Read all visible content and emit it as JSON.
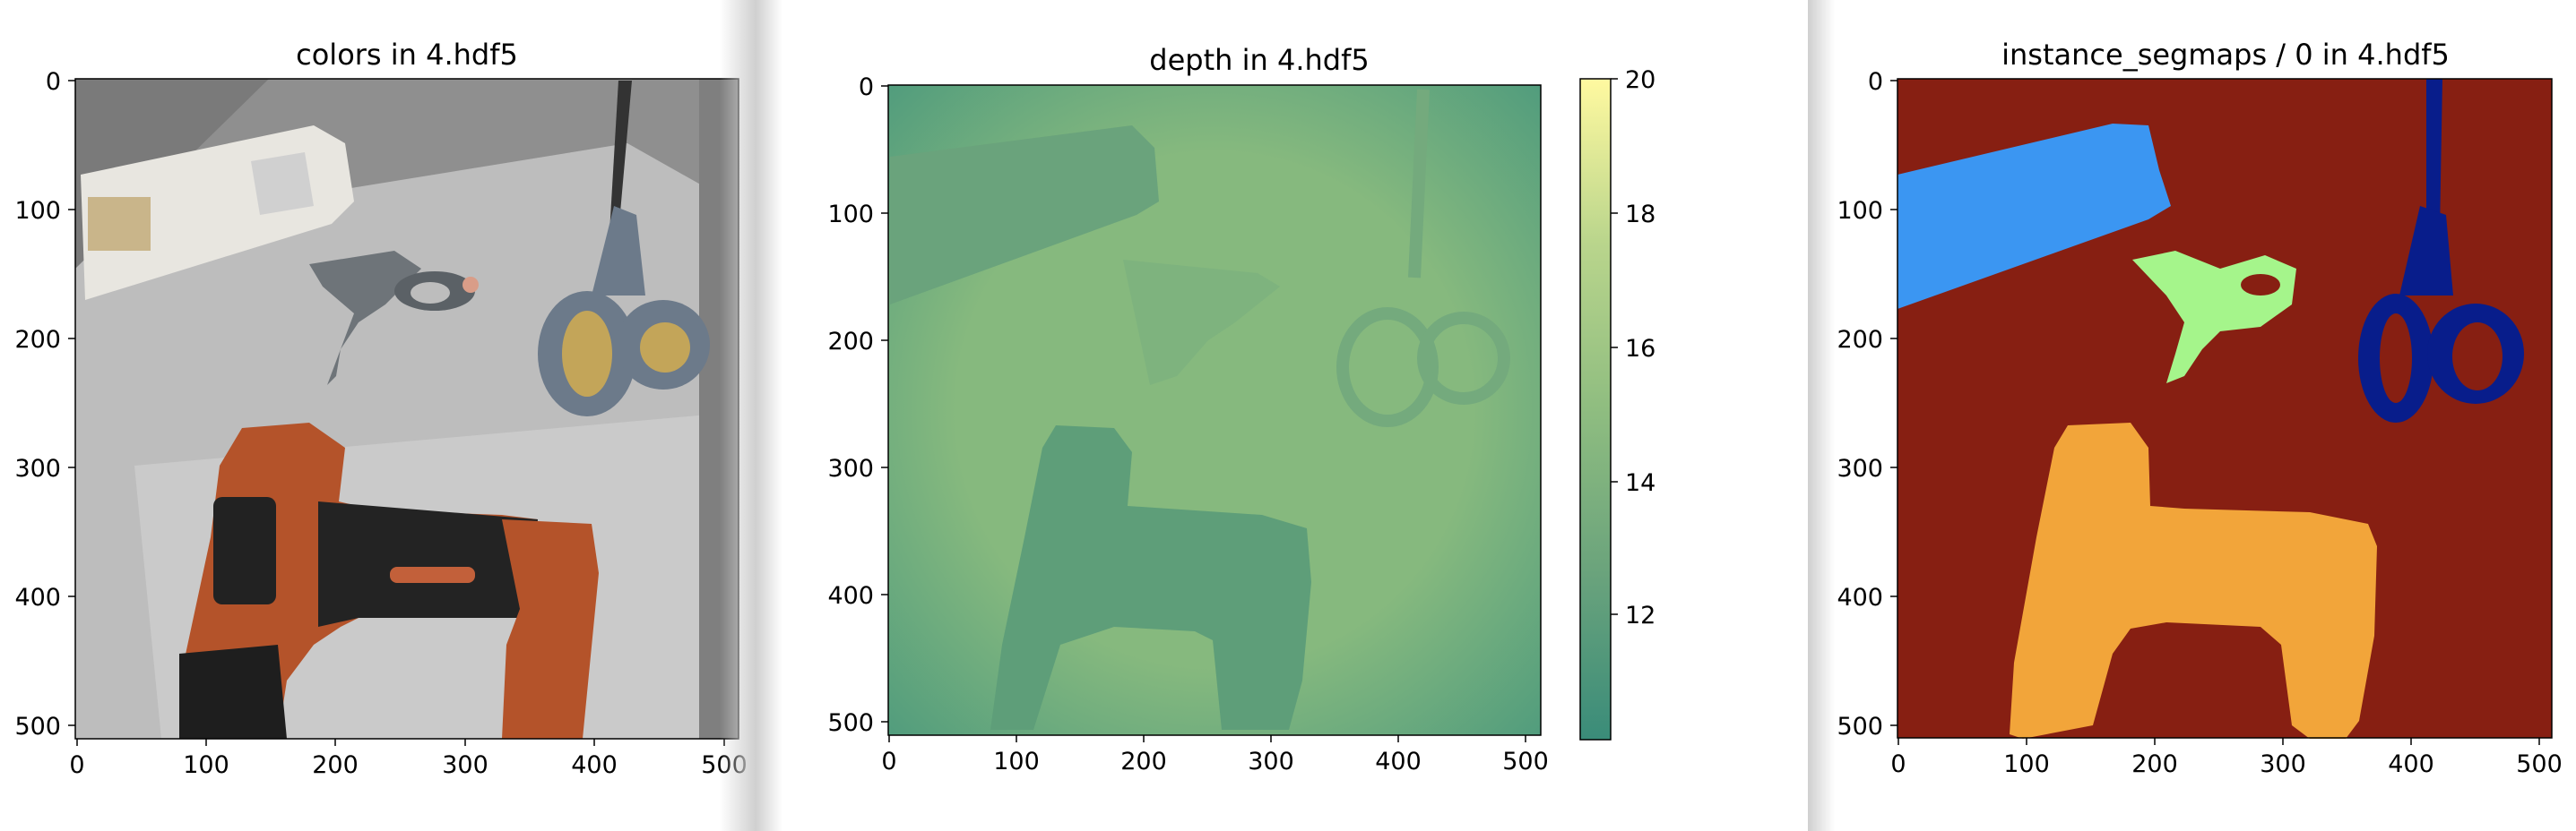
{
  "windows": [
    {
      "title": "colors in 4.hdf5",
      "x_ticks": [
        "0",
        "100",
        "200",
        "300",
        "400",
        "500"
      ],
      "y_ticks": [
        "0",
        "100",
        "200",
        "300",
        "400",
        "500"
      ]
    },
    {
      "title": "depth in 4.hdf5",
      "x_ticks": [
        "0",
        "100",
        "200",
        "300",
        "400",
        "500"
      ],
      "y_ticks": [
        "0",
        "100",
        "200",
        "300",
        "400",
        "500"
      ],
      "colorbar_ticks": [
        "20",
        "18",
        "16",
        "14",
        "12"
      ],
      "colormap": [
        "#3a8c79",
        "#6aa37c",
        "#8fbd80",
        "#b9d58c",
        "#fff9a0"
      ]
    },
    {
      "title": "instance_segmaps / 0 in 4.hdf5",
      "x_ticks": [
        "0",
        "100",
        "200",
        "300",
        "400",
        "500"
      ],
      "y_ticks": [
        "0",
        "100",
        "200",
        "300",
        "400",
        "500"
      ],
      "segment_colors": {
        "background": "#871f12",
        "bottle": "#3b96f2",
        "clamp": "#a5f58b",
        "scissors": "#081d8b",
        "drill": "#f2a53a"
      }
    }
  ]
}
